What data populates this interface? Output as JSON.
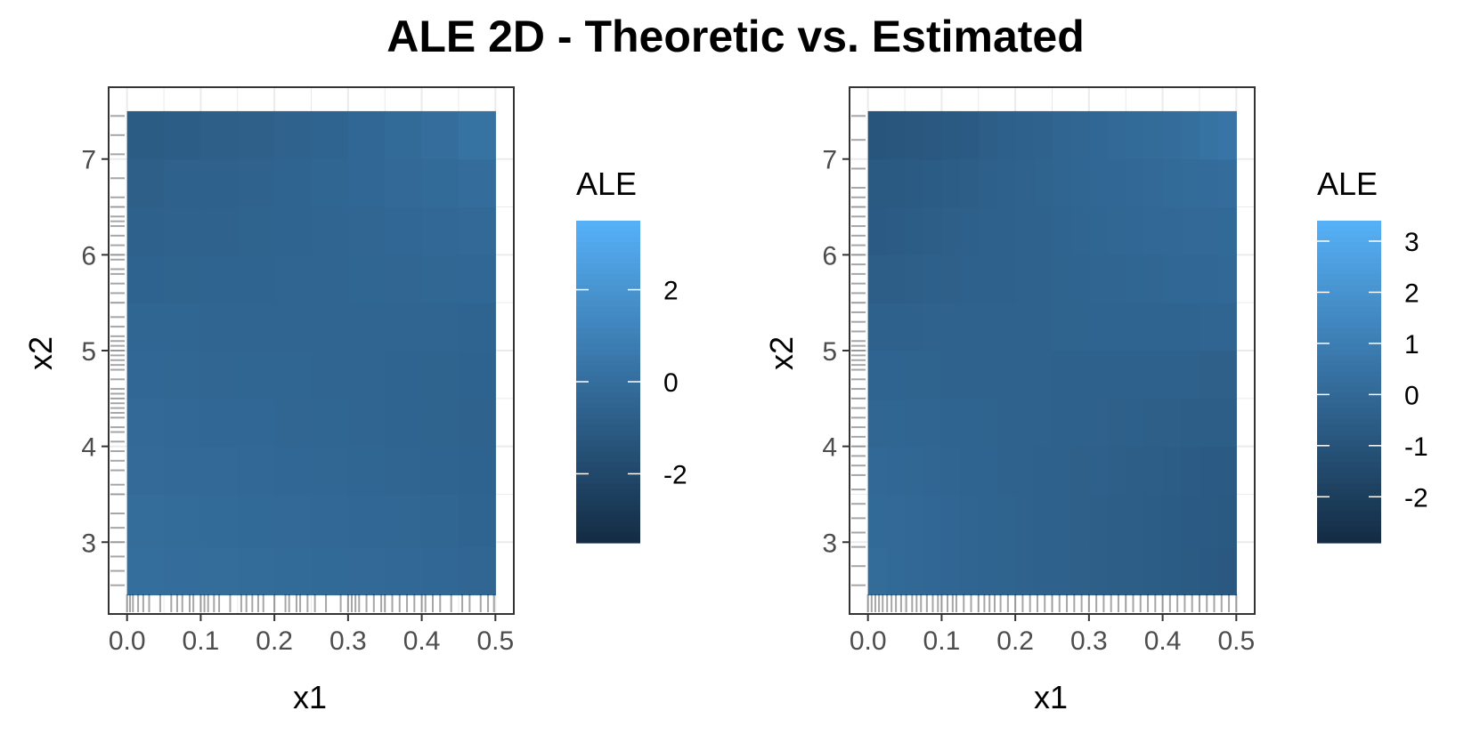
{
  "title": "ALE 2D - Theoretic vs. Estimated",
  "colors": {
    "low": "#132b43",
    "high": "#56b1f7",
    "panel_border": "#333333",
    "grid": "#ebebeb",
    "rug": "#000000"
  },
  "chart_data": [
    {
      "type": "heatmap",
      "name": "Theoretic",
      "xlabel": "x1",
      "ylabel": "x2",
      "xlim": [
        -0.025,
        0.525
      ],
      "ylim": [
        2.25,
        7.75
      ],
      "x_ticks": [
        "0.0",
        "0.1",
        "0.2",
        "0.3",
        "0.4",
        "0.5"
      ],
      "y_ticks": [
        "3",
        "4",
        "5",
        "6",
        "7"
      ],
      "x_breaks": [
        0.0,
        0.05,
        0.1,
        0.15,
        0.2,
        0.25,
        0.3,
        0.35,
        0.4,
        0.45,
        0.5
      ],
      "y_breaks": [
        2.45,
        2.95,
        3.5,
        4.0,
        4.5,
        5.0,
        5.5,
        6.0,
        6.5,
        7.0,
        7.5
      ],
      "grid": true,
      "legend": {
        "title": "ALE",
        "placement": "right",
        "range": [
          -3.5,
          3.5
        ],
        "tick_values": [
          2,
          0,
          -2
        ],
        "tick_labels": [
          "2",
          "0",
          "-2"
        ]
      },
      "rug_x": [
        0.0,
        0.004,
        0.008,
        0.015,
        0.022,
        0.03,
        0.045,
        0.06,
        0.068,
        0.075,
        0.085,
        0.09,
        0.1,
        0.105,
        0.11,
        0.118,
        0.125,
        0.14,
        0.155,
        0.162,
        0.17,
        0.178,
        0.185,
        0.2,
        0.215,
        0.22,
        0.23,
        0.235,
        0.245,
        0.255,
        0.27,
        0.29,
        0.3,
        0.305,
        0.31,
        0.315,
        0.325,
        0.335,
        0.345,
        0.35,
        0.36,
        0.37,
        0.38,
        0.39,
        0.4,
        0.405,
        0.415,
        0.425,
        0.44,
        0.455,
        0.465,
        0.48,
        0.49,
        0.498
      ],
      "rug_y": [
        2.55,
        2.7,
        2.85,
        3.0,
        3.15,
        3.3,
        3.5,
        3.6,
        3.75,
        3.85,
        3.95,
        4.05,
        4.15,
        4.2,
        4.3,
        4.35,
        4.4,
        4.45,
        4.5,
        4.55,
        4.6,
        4.7,
        4.8,
        4.85,
        4.9,
        4.95,
        5.0,
        5.05,
        5.1,
        5.15,
        5.25,
        5.35,
        5.5,
        5.6,
        5.7,
        5.8,
        5.85,
        5.95,
        6.0,
        6.1,
        6.2,
        6.3,
        6.35,
        6.4,
        6.5,
        6.6,
        6.8,
        7.05,
        7.25,
        7.45
      ],
      "values": [
        [
          -0.02,
          -0.06,
          -0.1,
          -0.14,
          -0.18,
          -0.22,
          -0.26,
          -0.3,
          -0.34,
          -0.4
        ],
        [
          -0.1,
          -0.14,
          -0.18,
          -0.22,
          -0.26,
          -0.3,
          -0.34,
          -0.38,
          -0.44,
          -0.5
        ],
        [
          -0.2,
          -0.24,
          -0.26,
          -0.3,
          -0.34,
          -0.38,
          -0.42,
          -0.46,
          -0.5,
          -0.56
        ],
        [
          -0.28,
          -0.3,
          -0.34,
          -0.36,
          -0.4,
          -0.42,
          -0.46,
          -0.5,
          -0.54,
          -0.58
        ],
        [
          -0.36,
          -0.38,
          -0.4,
          -0.42,
          -0.44,
          -0.46,
          -0.48,
          -0.52,
          -0.54,
          -0.56
        ],
        [
          -0.44,
          -0.44,
          -0.46,
          -0.46,
          -0.46,
          -0.46,
          -0.46,
          -0.48,
          -0.48,
          -0.5
        ],
        [
          -0.56,
          -0.54,
          -0.52,
          -0.5,
          -0.48,
          -0.46,
          -0.42,
          -0.4,
          -0.38,
          -0.34
        ],
        [
          -0.66,
          -0.62,
          -0.58,
          -0.54,
          -0.5,
          -0.46,
          -0.4,
          -0.36,
          -0.3,
          -0.26
        ],
        [
          -0.76,
          -0.7,
          -0.64,
          -0.58,
          -0.52,
          -0.44,
          -0.36,
          -0.28,
          -0.18,
          -0.08
        ],
        [
          -0.96,
          -0.88,
          -0.8,
          -0.72,
          -0.62,
          -0.5,
          -0.36,
          -0.18,
          0.0,
          0.2
        ]
      ]
    },
    {
      "type": "heatmap",
      "name": "Estimated",
      "xlabel": "x1",
      "ylabel": "x2",
      "xlim": [
        -0.025,
        0.525
      ],
      "ylim": [
        2.25,
        7.75
      ],
      "x_ticks": [
        "0.0",
        "0.1",
        "0.2",
        "0.3",
        "0.4",
        "0.5"
      ],
      "y_ticks": [
        "3",
        "4",
        "5",
        "6",
        "7"
      ],
      "x_breaks": [
        0.0,
        0.025,
        0.05,
        0.075,
        0.1,
        0.125,
        0.15,
        0.175,
        0.2,
        0.225,
        0.25,
        0.275,
        0.3,
        0.325,
        0.35,
        0.375,
        0.4,
        0.425,
        0.45,
        0.475,
        0.5
      ],
      "y_breaks": [
        2.45,
        2.95,
        3.5,
        4.0,
        4.5,
        5.0,
        5.5,
        6.0,
        6.5,
        7.0,
        7.5
      ],
      "grid": true,
      "legend": {
        "title": "ALE",
        "placement": "right",
        "range": [
          -2.9,
          3.4
        ],
        "tick_values": [
          3,
          2,
          1,
          0,
          -1,
          -2
        ],
        "tick_labels": [
          "3",
          "2",
          "1",
          "0",
          "-1",
          "-2"
        ]
      },
      "rug_x": [
        0.0,
        0.005,
        0.01,
        0.015,
        0.02,
        0.026,
        0.032,
        0.038,
        0.045,
        0.052,
        0.06,
        0.066,
        0.072,
        0.08,
        0.088,
        0.095,
        0.1,
        0.108,
        0.115,
        0.12,
        0.13,
        0.14,
        0.15,
        0.158,
        0.165,
        0.172,
        0.18,
        0.19,
        0.2,
        0.21,
        0.22,
        0.23,
        0.24,
        0.25,
        0.26,
        0.27,
        0.28,
        0.29,
        0.3,
        0.31,
        0.32,
        0.33,
        0.34,
        0.35,
        0.36,
        0.37,
        0.38,
        0.39,
        0.4,
        0.41,
        0.42,
        0.43,
        0.44,
        0.45,
        0.46,
        0.47,
        0.48,
        0.49,
        0.5
      ],
      "rug_y": [
        2.55,
        2.75,
        2.95,
        3.1,
        3.25,
        3.4,
        3.55,
        3.7,
        3.8,
        3.9,
        4.0,
        4.1,
        4.2,
        4.3,
        4.4,
        4.5,
        4.6,
        4.7,
        4.8,
        4.85,
        4.9,
        4.95,
        5.0,
        5.05,
        5.1,
        5.2,
        5.3,
        5.4,
        5.5,
        5.6,
        5.7,
        5.8,
        5.9,
        6.0,
        6.1,
        6.2,
        6.3,
        6.4,
        6.5,
        6.6,
        6.7,
        6.9,
        7.2,
        7.45
      ],
      "values": [
        [
          0.1,
          0.04,
          -0.02,
          -0.08,
          -0.12,
          -0.16,
          -0.2,
          -0.24,
          -0.28,
          -0.32,
          -0.36,
          -0.4,
          -0.44,
          -0.48,
          -0.52,
          -0.56,
          -0.6,
          -0.66,
          -0.72,
          -0.78
        ],
        [
          0.04,
          0.0,
          -0.04,
          -0.08,
          -0.12,
          -0.16,
          -0.2,
          -0.24,
          -0.28,
          -0.32,
          -0.36,
          -0.4,
          -0.44,
          -0.48,
          -0.52,
          -0.56,
          -0.6,
          -0.64,
          -0.68,
          -0.7
        ],
        [
          -0.04,
          -0.06,
          -0.1,
          -0.12,
          -0.16,
          -0.2,
          -0.22,
          -0.26,
          -0.3,
          -0.32,
          -0.36,
          -0.4,
          -0.42,
          -0.46,
          -0.5,
          -0.52,
          -0.56,
          -0.58,
          -0.62,
          -0.64
        ],
        [
          -0.12,
          -0.14,
          -0.16,
          -0.18,
          -0.2,
          -0.22,
          -0.24,
          -0.26,
          -0.28,
          -0.3,
          -0.32,
          -0.36,
          -0.38,
          -0.4,
          -0.42,
          -0.44,
          -0.46,
          -0.48,
          -0.5,
          -0.52
        ],
        [
          -0.22,
          -0.22,
          -0.24,
          -0.24,
          -0.26,
          -0.26,
          -0.28,
          -0.28,
          -0.3,
          -0.3,
          -0.32,
          -0.32,
          -0.34,
          -0.34,
          -0.36,
          -0.36,
          -0.38,
          -0.38,
          -0.4,
          -0.4
        ],
        [
          -0.34,
          -0.32,
          -0.32,
          -0.3,
          -0.3,
          -0.28,
          -0.28,
          -0.26,
          -0.26,
          -0.26,
          -0.24,
          -0.24,
          -0.22,
          -0.22,
          -0.22,
          -0.2,
          -0.2,
          -0.2,
          -0.18,
          -0.18
        ],
        [
          -0.5,
          -0.48,
          -0.46,
          -0.42,
          -0.4,
          -0.36,
          -0.34,
          -0.32,
          -0.28,
          -0.26,
          -0.24,
          -0.2,
          -0.18,
          -0.16,
          -0.14,
          -0.12,
          -0.1,
          -0.08,
          -0.06,
          -0.04
        ],
        [
          -0.62,
          -0.58,
          -0.54,
          -0.5,
          -0.46,
          -0.42,
          -0.38,
          -0.34,
          -0.3,
          -0.26,
          -0.22,
          -0.18,
          -0.14,
          -0.1,
          -0.08,
          -0.04,
          -0.02,
          0.0,
          0.02,
          0.04
        ],
        [
          -0.74,
          -0.7,
          -0.66,
          -0.6,
          -0.54,
          -0.48,
          -0.42,
          -0.36,
          -0.3,
          -0.24,
          -0.18,
          -0.14,
          -0.1,
          -0.06,
          -0.02,
          0.02,
          0.06,
          0.1,
          0.14,
          0.18
        ],
        [
          -0.94,
          -0.9,
          -0.84,
          -0.78,
          -0.7,
          -0.62,
          -0.52,
          -0.42,
          -0.34,
          -0.26,
          -0.18,
          -0.12,
          -0.06,
          0.0,
          0.06,
          0.12,
          0.2,
          0.3,
          0.42,
          0.56
        ]
      ]
    }
  ]
}
